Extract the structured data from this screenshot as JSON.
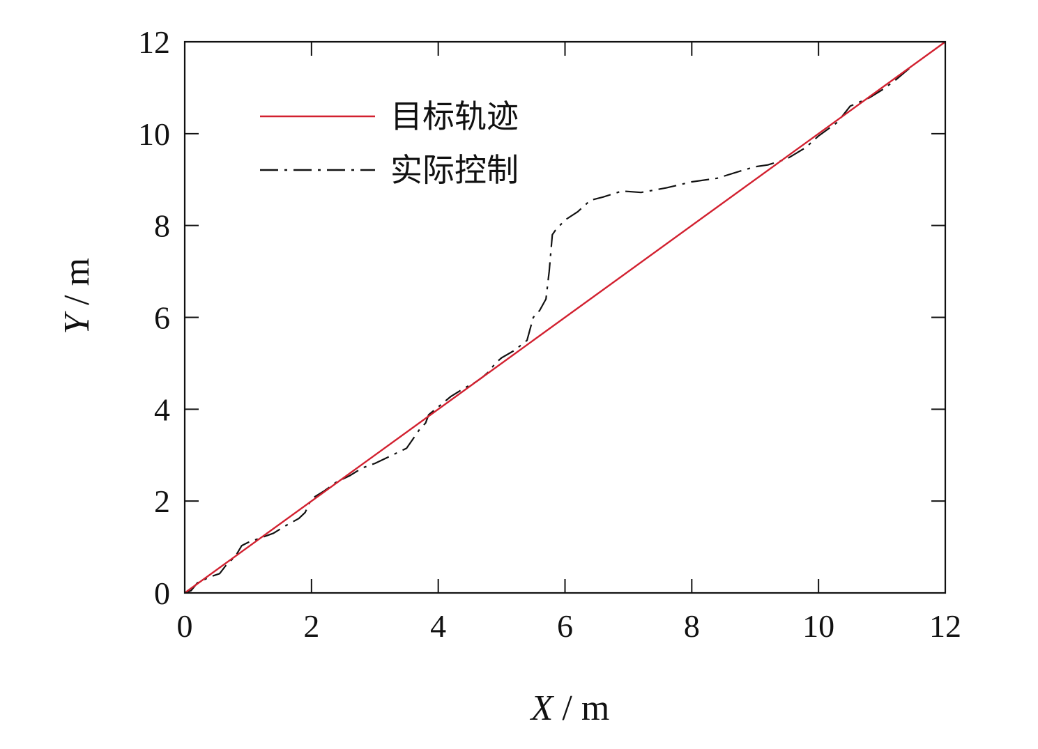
{
  "chart_data": {
    "type": "line",
    "xlabel": {
      "var": "X",
      "unit": " / m"
    },
    "ylabel": {
      "var": "Y",
      "unit": " / m"
    },
    "xlim": [
      0,
      12
    ],
    "ylim": [
      0,
      12
    ],
    "xticks": [
      "0",
      "2",
      "4",
      "6",
      "8",
      "10",
      "12"
    ],
    "yticks": [
      "0",
      "2",
      "4",
      "6",
      "8",
      "10",
      "12"
    ],
    "grid": false,
    "legend": {
      "placement": "top-left"
    },
    "series": [
      {
        "name": "目标轨迹",
        "color": "#d2202f",
        "style": "solid",
        "x": [
          0,
          12
        ],
        "y": [
          0,
          12
        ]
      },
      {
        "name": "实际控制",
        "color": "#111111",
        "style": "dash-dot",
        "x": [
          0,
          0.1,
          0.2,
          0.4,
          0.55,
          0.65,
          0.8,
          0.9,
          1.0,
          1.2,
          1.4,
          1.6,
          1.8,
          1.9,
          2.0,
          2.2,
          2.4,
          2.6,
          2.8,
          3.0,
          3.2,
          3.5,
          3.6,
          3.7,
          3.8,
          3.85,
          4.0,
          4.2,
          4.4,
          4.6,
          4.7,
          4.8,
          4.9,
          5.0,
          5.2,
          5.4,
          5.5,
          5.6,
          5.7,
          5.75,
          5.8,
          5.85,
          6.0,
          6.2,
          6.4,
          6.6,
          6.9,
          7.2,
          7.6,
          8.0,
          8.4,
          8.8,
          9.0,
          9.2,
          9.5,
          9.8,
          10.0,
          10.3,
          10.5,
          10.8,
          11.0,
          11.2,
          11.5
        ],
        "y": [
          0,
          0.05,
          0.22,
          0.35,
          0.42,
          0.6,
          0.8,
          1.03,
          1.1,
          1.2,
          1.3,
          1.47,
          1.62,
          1.75,
          2.05,
          2.22,
          2.42,
          2.55,
          2.72,
          2.82,
          2.95,
          3.15,
          3.35,
          3.55,
          3.7,
          3.88,
          4.05,
          4.28,
          4.45,
          4.6,
          4.7,
          4.82,
          5.0,
          5.12,
          5.28,
          5.5,
          6.0,
          6.15,
          6.4,
          7.0,
          7.8,
          7.9,
          8.12,
          8.3,
          8.55,
          8.62,
          8.75,
          8.72,
          8.82,
          8.95,
          9.03,
          9.2,
          9.28,
          9.32,
          9.45,
          9.7,
          9.95,
          10.25,
          10.6,
          10.78,
          10.95,
          11.15,
          11.5
        ]
      }
    ]
  }
}
